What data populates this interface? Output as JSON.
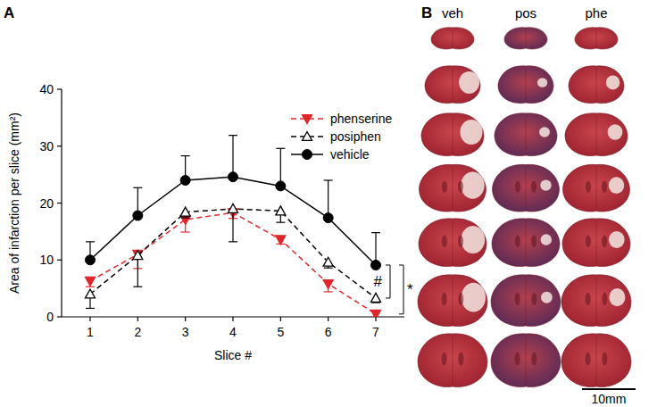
{
  "chart_data": {
    "type": "line",
    "y_label": "Area of infarction per slice (mm²)",
    "x_label": "Slice #",
    "x": [
      1,
      2,
      3,
      4,
      5,
      6,
      7
    ],
    "xlim": [
      0.4,
      7.6
    ],
    "xticks": [
      1,
      2,
      3,
      4,
      5,
      6,
      7
    ],
    "ylim": [
      0,
      40
    ],
    "yticks": [
      0,
      10,
      20,
      30,
      40
    ],
    "grid": false,
    "legend": "upper right",
    "series": [
      {
        "name": "phenserine",
        "color": "#e0262a",
        "marker": "triangle_down",
        "line_style": "dashed",
        "values": [
          6.3,
          11.0,
          17.1,
          18.3,
          13.6,
          5.8,
          0.5
        ],
        "errors": [
          1.0,
          2.5,
          2.2,
          1.0,
          0.8,
          1.4,
          0.5
        ]
      },
      {
        "name": "posiphen",
        "color": "#000000",
        "marker": "triangle_up_open",
        "line_style": "dashed",
        "values": [
          4.0,
          10.8,
          18.4,
          19.0,
          18.6,
          9.6,
          3.3
        ],
        "errors": [
          2.5,
          5.5,
          1.0,
          5.8,
          2.0,
          1.0,
          0.8
        ]
      },
      {
        "name": "vehicle",
        "color": "#000000",
        "marker": "circle",
        "line_style": "solid",
        "values": [
          10.0,
          17.8,
          24.0,
          24.6,
          23.0,
          17.4,
          9.1
        ],
        "errors": [
          3.2,
          4.9,
          4.3,
          7.3,
          6.6,
          6.6,
          5.7
        ]
      }
    ],
    "annotations": [
      {
        "text": "#",
        "between": [
          "posiphen",
          "vehicle"
        ]
      },
      {
        "text": "*",
        "between": [
          "phenserine",
          "vehicle"
        ]
      }
    ]
  },
  "panel_labels": [
    "A",
    "B"
  ],
  "photo_panel": {
    "columns": [
      "veh",
      "pos",
      "phe"
    ],
    "rows": 7,
    "scale_bar": "10mm"
  }
}
